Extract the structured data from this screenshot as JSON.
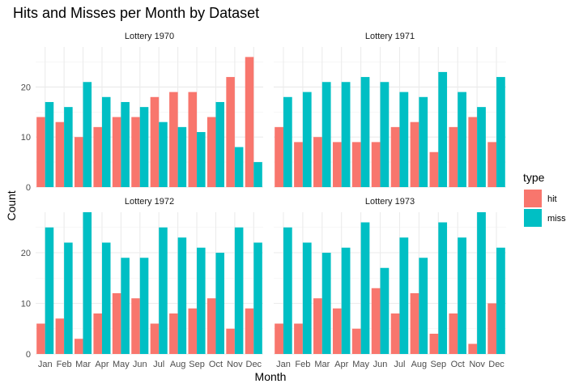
{
  "chart_data": {
    "type": "bar",
    "title": "Hits and Misses per Month by Dataset",
    "xlabel": "Month",
    "ylabel": "Count",
    "categories": [
      "Jan",
      "Feb",
      "Mar",
      "Apr",
      "May",
      "Jun",
      "Jul",
      "Aug",
      "Sep",
      "Oct",
      "Nov",
      "Dec"
    ],
    "yticks": [
      0,
      10,
      20
    ],
    "ylim": [
      0,
      28
    ],
    "legend": {
      "title": "type",
      "position": "right",
      "entries": [
        {
          "label": "hit",
          "color": "#F8766D"
        },
        {
          "label": "miss",
          "color": "#00BFC4"
        }
      ]
    },
    "panels": [
      {
        "title": "Lottery 1970",
        "series": [
          {
            "name": "hit",
            "values": [
              14,
              13,
              10,
              12,
              14,
              14,
              18,
              19,
              19,
              14,
              22,
              26
            ]
          },
          {
            "name": "miss",
            "values": [
              17,
              16,
              21,
              18,
              17,
              16,
              13,
              12,
              11,
              17,
              8,
              5
            ]
          }
        ]
      },
      {
        "title": "Lottery 1971",
        "series": [
          {
            "name": "hit",
            "values": [
              12,
              9,
              10,
              9,
              9,
              9,
              12,
              13,
              7,
              12,
              14,
              9
            ]
          },
          {
            "name": "miss",
            "values": [
              18,
              19,
              21,
              21,
              22,
              21,
              19,
              18,
              23,
              19,
              16,
              22
            ]
          }
        ]
      },
      {
        "title": "Lottery 1972",
        "series": [
          {
            "name": "hit",
            "values": [
              6,
              7,
              3,
              8,
              12,
              11,
              6,
              8,
              9,
              11,
              5,
              9
            ]
          },
          {
            "name": "miss",
            "values": [
              25,
              22,
              28,
              22,
              19,
              19,
              25,
              23,
              21,
              20,
              25,
              22
            ]
          }
        ]
      },
      {
        "title": "Lottery 1973",
        "series": [
          {
            "name": "hit",
            "values": [
              6,
              6,
              11,
              9,
              5,
              13,
              8,
              12,
              4,
              8,
              2,
              10
            ]
          },
          {
            "name": "miss",
            "values": [
              25,
              22,
              20,
              21,
              26,
              17,
              23,
              19,
              26,
              23,
              28,
              21
            ]
          }
        ]
      }
    ]
  }
}
